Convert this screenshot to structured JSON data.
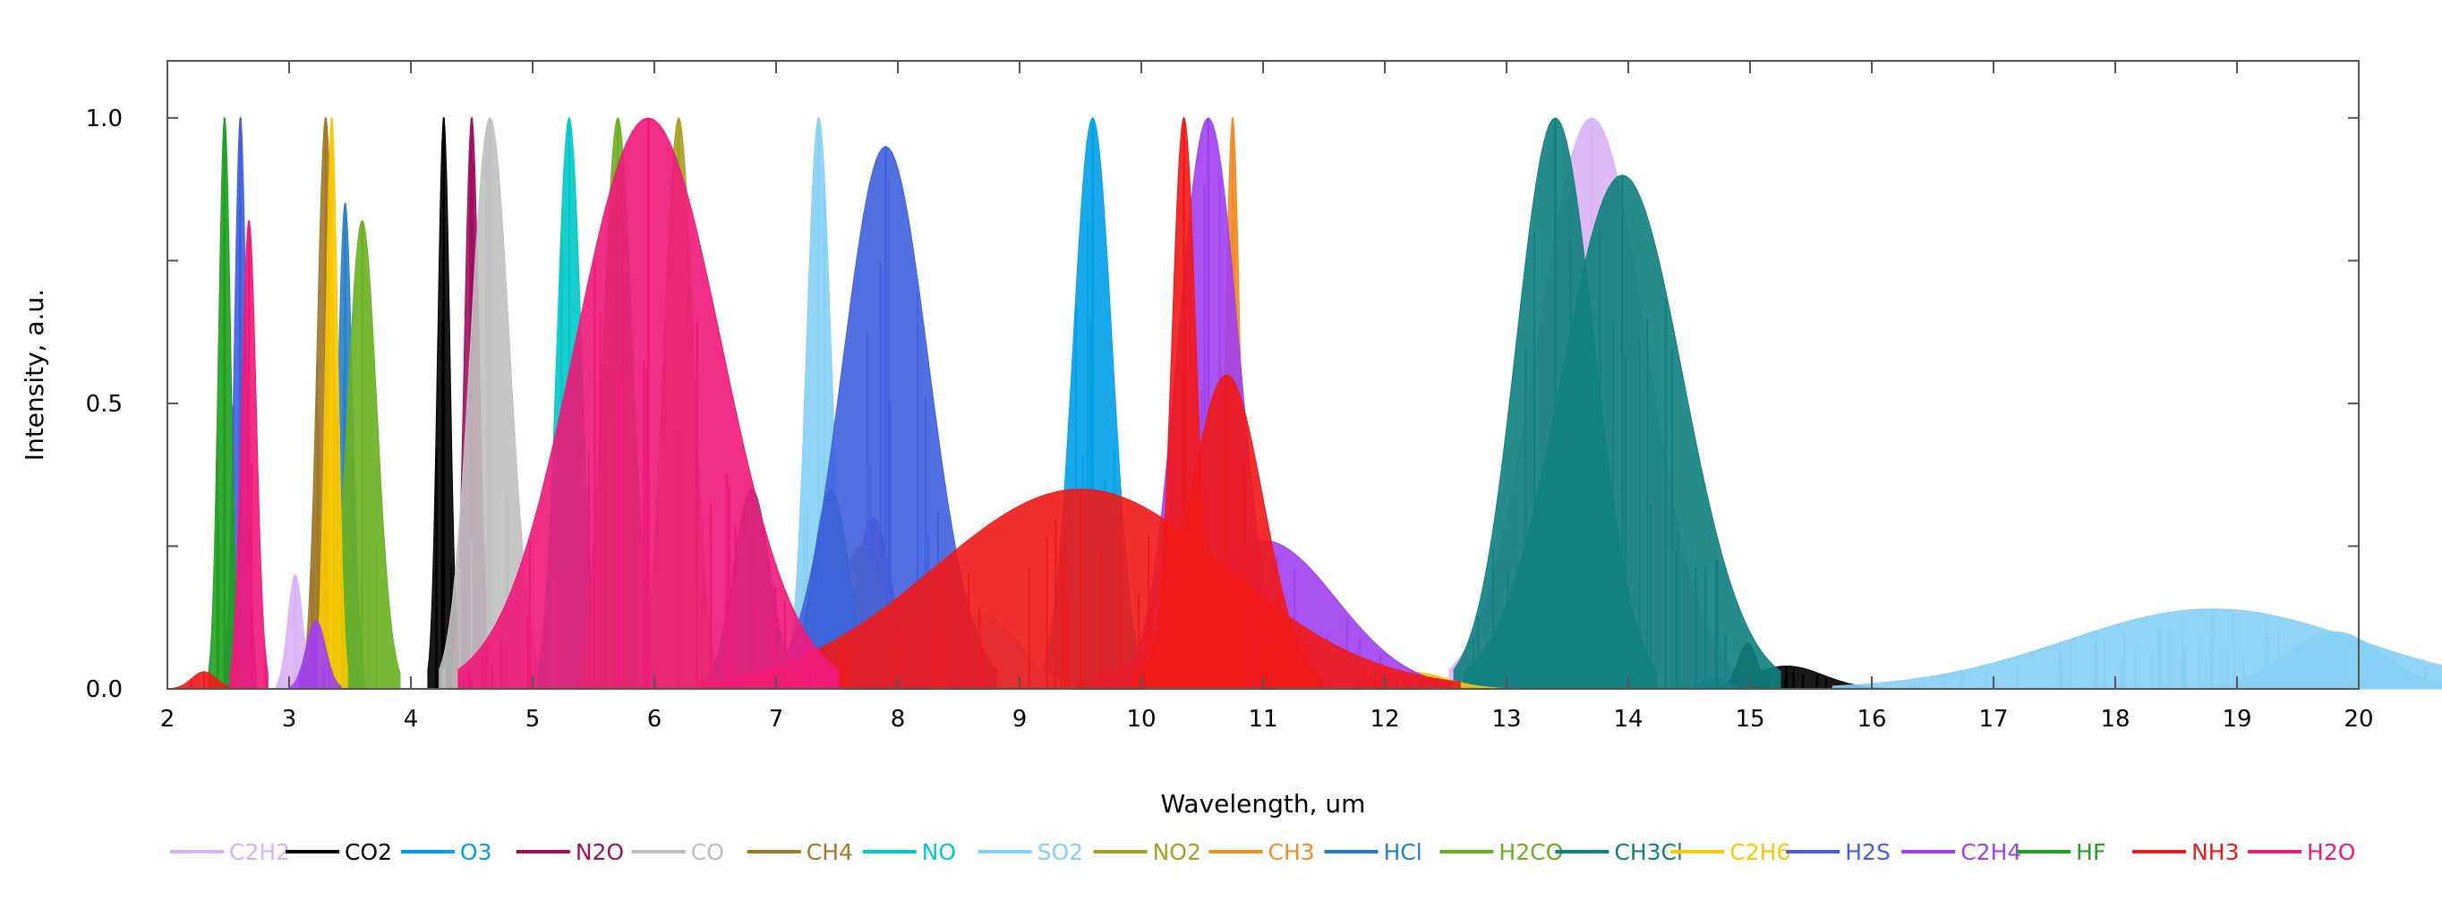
{
  "chart_data": {
    "type": "line",
    "title": "",
    "xlabel": "Wavelength, um",
    "ylabel": "Intensity, a.u.",
    "xlim": [
      2,
      20
    ],
    "ylim": [
      0,
      1.1
    ],
    "x_ticks": [
      2,
      3,
      4,
      5,
      6,
      7,
      8,
      9,
      10,
      11,
      12,
      13,
      14,
      15,
      16,
      17,
      18,
      19,
      20
    ],
    "x_tick_labels": [
      "2",
      "3",
      "4",
      "5",
      "6",
      "7",
      "8",
      "9",
      "10",
      "11",
      "12",
      "13",
      "14",
      "15",
      "16",
      "17",
      "18",
      "19",
      "20"
    ],
    "y_ticks": [
      0,
      0.5,
      1.0
    ],
    "y_tick_labels": [
      "0.0",
      "0.5",
      "1.0"
    ],
    "grid": false,
    "legend_position": "bottom",
    "series": [
      {
        "name": "C2H2",
        "color": "#d9b3f5",
        "bands": [
          {
            "c": 3.05,
            "w": 0.06,
            "h": 0.2
          },
          {
            "c": 13.7,
            "w": 0.45,
            "h": 1.0
          }
        ]
      },
      {
        "name": "CO2",
        "color": "#000000",
        "bands": [
          {
            "c": 4.27,
            "w": 0.05,
            "h": 1.0
          },
          {
            "c": 14.98,
            "w": 0.08,
            "h": 0.08
          },
          {
            "c": 15.3,
            "w": 0.3,
            "h": 0.04
          }
        ]
      },
      {
        "name": "O3",
        "color": "#00a0e8",
        "bands": [
          {
            "c": 9.6,
            "w": 0.16,
            "h": 1.0
          },
          {
            "c": 14.7,
            "w": 0.1,
            "h": 0.02
          }
        ]
      },
      {
        "name": "N2O",
        "color": "#a01060",
        "bands": [
          {
            "c": 4.5,
            "w": 0.06,
            "h": 1.0
          },
          {
            "c": 7.8,
            "w": 0.15,
            "h": 0.3
          }
        ]
      },
      {
        "name": "CO",
        "color": "#c0c0c0",
        "bands": [
          {
            "c": 4.65,
            "w": 0.16,
            "h": 1.0
          }
        ]
      },
      {
        "name": "CH4",
        "color": "#a0782a",
        "bands": [
          {
            "c": 3.3,
            "w": 0.07,
            "h": 1.0
          },
          {
            "c": 7.7,
            "w": 0.2,
            "h": 0.25
          }
        ]
      },
      {
        "name": "NO",
        "color": "#00c8c8",
        "bands": [
          {
            "c": 5.3,
            "w": 0.1,
            "h": 1.0
          }
        ]
      },
      {
        "name": "SO2",
        "color": "#86cff5",
        "bands": [
          {
            "c": 7.35,
            "w": 0.1,
            "h": 1.0
          },
          {
            "c": 8.7,
            "w": 0.3,
            "h": 0.13
          },
          {
            "c": 18.8,
            "w": 1.2,
            "h": 0.14
          },
          {
            "c": 19.8,
            "w": 0.4,
            "h": 0.1
          }
        ]
      },
      {
        "name": "NO2",
        "color": "#a8a020",
        "bands": [
          {
            "c": 6.2,
            "w": 0.12,
            "h": 1.0
          }
        ]
      },
      {
        "name": "CH3",
        "color": "#f08c28",
        "bands": [
          {
            "c": 10.75,
            "w": 0.06,
            "h": 1.0
          }
        ]
      },
      {
        "name": "HCl",
        "color": "#2a80c8",
        "bands": [
          {
            "c": 3.46,
            "w": 0.06,
            "h": 0.85
          }
        ]
      },
      {
        "name": "H2CO",
        "color": "#6ab020",
        "bands": [
          {
            "c": 3.6,
            "w": 0.12,
            "h": 0.82
          },
          {
            "c": 5.7,
            "w": 0.12,
            "h": 1.0
          }
        ]
      },
      {
        "name": "CH3Cl",
        "color": "#108080",
        "bands": [
          {
            "c": 13.4,
            "w": 0.32,
            "h": 1.0
          },
          {
            "c": 13.95,
            "w": 0.5,
            "h": 0.9
          },
          {
            "c": 6.8,
            "w": 0.15,
            "h": 0.35
          },
          {
            "c": 7.45,
            "w": 0.15,
            "h": 0.35
          }
        ]
      },
      {
        "name": "C2H6",
        "color": "#f8c800",
        "bands": [
          {
            "c": 3.35,
            "w": 0.05,
            "h": 1.0
          },
          {
            "c": 12.2,
            "w": 0.3,
            "h": 0.03
          }
        ]
      },
      {
        "name": "H2S",
        "color": "#4060e0",
        "bands": [
          {
            "c": 2.6,
            "w": 0.05,
            "h": 1.0
          },
          {
            "c": 7.9,
            "w": 0.35,
            "h": 0.95
          }
        ]
      },
      {
        "name": "C2H4",
        "color": "#a040f0",
        "bands": [
          {
            "c": 10.55,
            "w": 0.25,
            "h": 1.0
          },
          {
            "c": 3.22,
            "w": 0.08,
            "h": 0.12
          },
          {
            "c": 11.0,
            "w": 0.6,
            "h": 0.26
          }
        ]
      },
      {
        "name": "HF",
        "color": "#20a020",
        "bands": [
          {
            "c": 2.47,
            "w": 0.05,
            "h": 1.0
          }
        ]
      },
      {
        "name": "NH3",
        "color": "#f01818",
        "bands": [
          {
            "c": 10.35,
            "w": 0.1,
            "h": 1.0
          },
          {
            "c": 10.7,
            "w": 0.3,
            "h": 0.55
          },
          {
            "c": 9.5,
            "w": 1.2,
            "h": 0.35
          },
          {
            "c": 2.3,
            "w": 0.1,
            "h": 0.03
          }
        ]
      },
      {
        "name": "H2O",
        "color": "#f0187a",
        "bands": [
          {
            "c": 2.67,
            "w": 0.06,
            "h": 0.82
          },
          {
            "c": 5.95,
            "w": 0.6,
            "h": 1.0
          }
        ]
      }
    ]
  }
}
